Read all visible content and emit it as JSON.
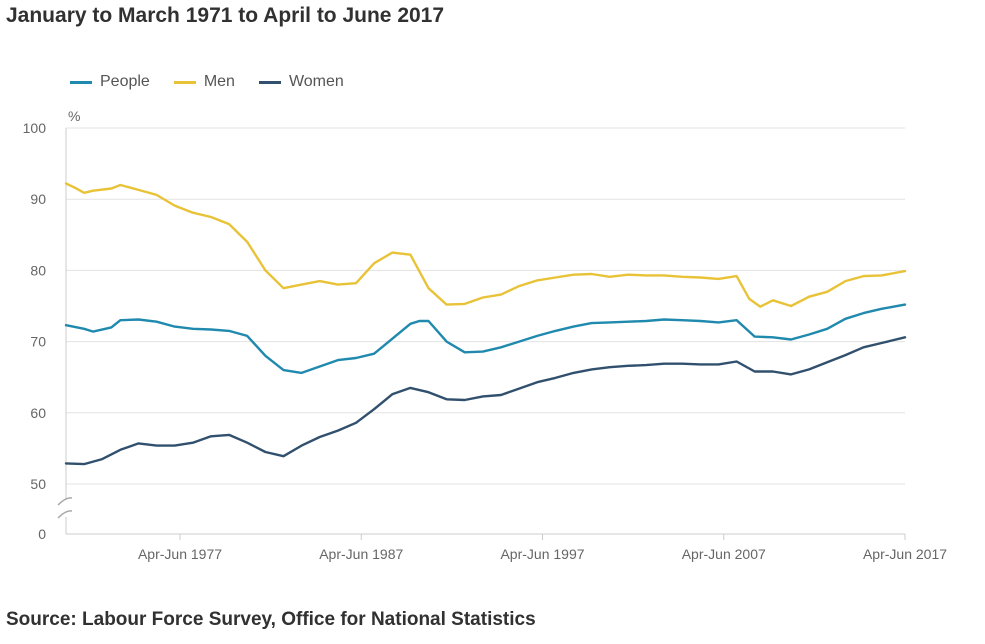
{
  "title": "January to March 1971 to April to June 2017",
  "source": "Source: Labour Force Survey, Office for National Statistics",
  "chart_data": {
    "type": "line",
    "ylabel": "%",
    "ylim": [
      0,
      100
    ],
    "y_ticks": [
      "0",
      "50",
      "60",
      "70",
      "80",
      "90",
      "100"
    ],
    "x_ticks": [
      "Apr-Jun 1977",
      "Apr-Jun 1987",
      "Apr-Jun 1997",
      "Apr-Jun 2007",
      "Apr-Jun 2017"
    ],
    "x_tick_years": [
      1977.29,
      1987.29,
      1997.29,
      2007.29,
      2017.29
    ],
    "x_range": [
      1971.0,
      2017.29
    ],
    "axis_break": true,
    "grid": true,
    "legend_position": "top-left",
    "series": [
      {
        "name": "People",
        "color": "#2089ae",
        "x": [
          1971.0,
          1972.0,
          1972.5,
          1973.5,
          1974.0,
          1975.0,
          1976.0,
          1977.0,
          1978.0,
          1979.0,
          1980.0,
          1981.0,
          1982.0,
          1983.0,
          1984.0,
          1985.0,
          1986.0,
          1987.0,
          1988.0,
          1989.0,
          1990.0,
          1990.5,
          1991.0,
          1992.0,
          1993.0,
          1994.0,
          1995.0,
          1996.0,
          1997.0,
          1998.0,
          1999.0,
          2000.0,
          2001.0,
          2002.0,
          2003.0,
          2004.0,
          2005.0,
          2006.0,
          2007.0,
          2008.0,
          2009.0,
          2010.0,
          2011.0,
          2012.0,
          2013.0,
          2014.0,
          2015.0,
          2016.0,
          2017.29
        ],
        "y": [
          72.3,
          71.8,
          71.4,
          72.0,
          73.0,
          73.1,
          72.8,
          72.1,
          71.8,
          71.7,
          71.5,
          70.8,
          68.0,
          66.0,
          65.6,
          66.5,
          67.4,
          67.7,
          68.3,
          70.4,
          72.5,
          72.9,
          72.9,
          70.0,
          68.5,
          68.6,
          69.2,
          70.0,
          70.8,
          71.5,
          72.1,
          72.6,
          72.7,
          72.8,
          72.9,
          73.1,
          73.0,
          72.9,
          72.7,
          73.0,
          70.7,
          70.6,
          70.3,
          71.0,
          71.8,
          73.2,
          74.0,
          74.6,
          75.2
        ]
      },
      {
        "name": "Men",
        "color": "#e8c237",
        "x": [
          1971.0,
          1971.5,
          1972.0,
          1972.5,
          1973.5,
          1974.0,
          1975.0,
          1976.0,
          1977.0,
          1978.0,
          1979.0,
          1980.0,
          1981.0,
          1982.0,
          1983.0,
          1984.0,
          1985.0,
          1986.0,
          1987.0,
          1988.0,
          1989.0,
          1990.0,
          1991.0,
          1992.0,
          1993.0,
          1994.0,
          1995.0,
          1996.0,
          1997.0,
          1998.0,
          1999.0,
          2000.0,
          2001.0,
          2002.0,
          2003.0,
          2004.0,
          2005.0,
          2006.0,
          2007.0,
          2008.0,
          2008.7,
          2009.3,
          2010.0,
          2011.0,
          2012.0,
          2013.0,
          2014.0,
          2015.0,
          2016.0,
          2017.29
        ],
        "y": [
          92.2,
          91.6,
          90.9,
          91.2,
          91.5,
          92.0,
          91.3,
          90.6,
          89.1,
          88.1,
          87.5,
          86.5,
          84.0,
          80.0,
          77.5,
          78.0,
          78.5,
          78.0,
          78.2,
          81.0,
          82.5,
          82.2,
          77.5,
          75.2,
          75.3,
          76.2,
          76.6,
          77.8,
          78.6,
          79.0,
          79.4,
          79.5,
          79.1,
          79.4,
          79.3,
          79.3,
          79.1,
          79.0,
          78.8,
          79.2,
          76.0,
          74.9,
          75.8,
          75.0,
          76.3,
          77.0,
          78.5,
          79.2,
          79.3,
          79.9
        ]
      },
      {
        "name": "Women",
        "color": "#31506e",
        "x": [
          1971.0,
          1972.0,
          1973.0,
          1974.0,
          1975.0,
          1976.0,
          1977.0,
          1978.0,
          1979.0,
          1980.0,
          1981.0,
          1982.0,
          1983.0,
          1984.0,
          1985.0,
          1986.0,
          1987.0,
          1988.0,
          1989.0,
          1990.0,
          1991.0,
          1992.0,
          1993.0,
          1994.0,
          1995.0,
          1996.0,
          1997.0,
          1998.0,
          1999.0,
          2000.0,
          2001.0,
          2002.0,
          2003.0,
          2004.0,
          2005.0,
          2006.0,
          2007.0,
          2008.0,
          2009.0,
          2010.0,
          2011.0,
          2012.0,
          2013.0,
          2014.0,
          2015.0,
          2016.0,
          2017.29
        ],
        "y": [
          52.9,
          52.8,
          53.5,
          54.8,
          55.7,
          55.4,
          55.4,
          55.8,
          56.7,
          56.9,
          55.8,
          54.5,
          53.9,
          55.4,
          56.6,
          57.5,
          58.6,
          60.5,
          62.6,
          63.5,
          62.9,
          61.9,
          61.8,
          62.3,
          62.5,
          63.4,
          64.3,
          64.9,
          65.6,
          66.1,
          66.4,
          66.6,
          66.7,
          66.9,
          66.9,
          66.8,
          66.8,
          67.2,
          65.8,
          65.8,
          65.4,
          66.1,
          67.1,
          68.1,
          69.2,
          69.8,
          70.6
        ]
      }
    ]
  }
}
